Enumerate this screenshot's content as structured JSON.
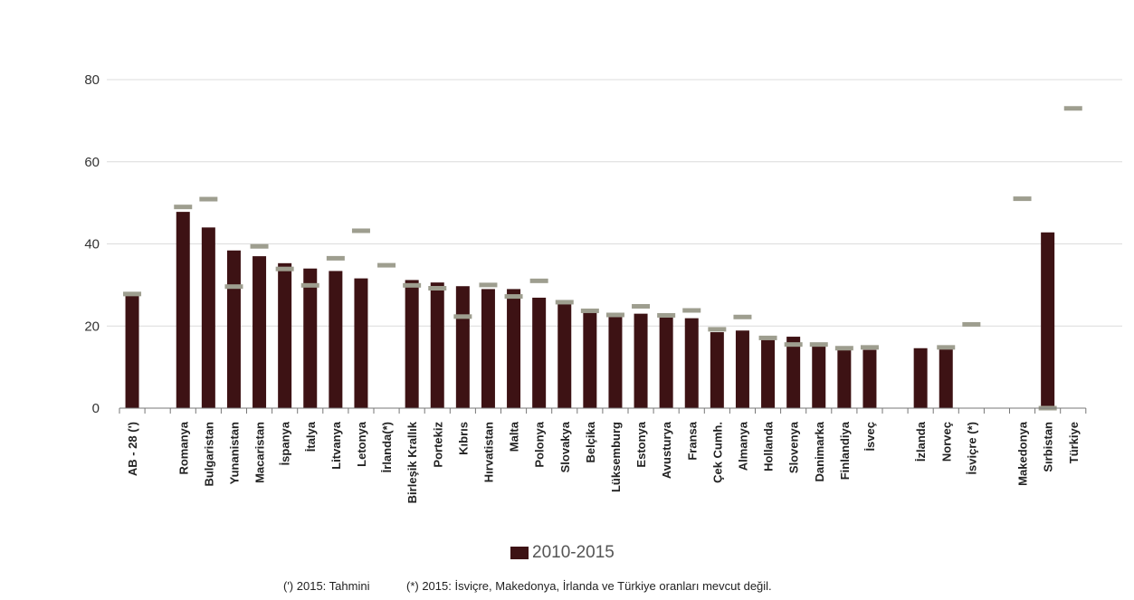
{
  "chart_data": {
    "type": "bar",
    "title": "",
    "xlabel": "",
    "ylabel": "",
    "ylim": [
      0,
      80
    ],
    "yticks": [
      0,
      20,
      40,
      60,
      80
    ],
    "grid": "horizontal",
    "legend_position": "bottom",
    "categories": [
      "AB - 28 (')",
      "",
      "Romanya",
      "Bulgaristan",
      "Yunanistan",
      "Macaristan",
      "İspanya",
      "İtalya",
      "Litvanya",
      "Letonya",
      "İrlanda(*)",
      "Birleşik Krallık",
      "Portekiz",
      "Kıbrıs",
      "Hırvatistan",
      "Malta",
      "Polonya",
      "Slovakya",
      "Belçika",
      "Lüksemburg",
      "Estonya",
      "Avusturya",
      "Fransa",
      "Çek Cumh.",
      "Almanya",
      "Hollanda",
      "Slovenya",
      "Danimarka",
      "Finlandiya",
      "İsveç",
      "",
      "İzlanda",
      "Norveç",
      "İsviçre (*)",
      "",
      "Makedonya",
      "Sırbistan",
      "Türkiye"
    ],
    "series": [
      {
        "name": "2010-2015",
        "kind": "bar",
        "color": "#3d1214",
        "values": [
          27.5,
          null,
          47.8,
          44.0,
          38.4,
          37.0,
          35.3,
          34.0,
          33.4,
          31.6,
          null,
          31.2,
          30.6,
          29.7,
          29.0,
          29.0,
          26.9,
          25.8,
          23.5,
          22.3,
          23.0,
          22.1,
          21.9,
          18.5,
          18.9,
          16.6,
          17.4,
          15.0,
          14.1,
          14.2,
          null,
          14.6,
          14.4,
          null,
          null,
          null,
          42.8,
          null
        ]
      },
      {
        "kind": "marker",
        "color": "#9e9e8f",
        "values": [
          27.8,
          null,
          49.0,
          50.9,
          29.6,
          39.4,
          33.9,
          29.9,
          36.5,
          43.2,
          34.8,
          29.9,
          29.2,
          22.3,
          30.0,
          27.2,
          31.0,
          25.8,
          23.7,
          22.7,
          24.8,
          22.6,
          23.8,
          19.2,
          22.2,
          17.1,
          15.5,
          15.5,
          14.6,
          14.8,
          null,
          null,
          14.8,
          20.4,
          null,
          51.0,
          0,
          73.0
        ]
      }
    ]
  },
  "legend": {
    "label": "2010-2015",
    "color": "#3d1214"
  },
  "footnotes": {
    "estimate": "(') 2015: Tahmini",
    "missing": "(*) 2015: İsviçre, Makedonya, İrlanda ve Türkiye oranları mevcut değil."
  }
}
